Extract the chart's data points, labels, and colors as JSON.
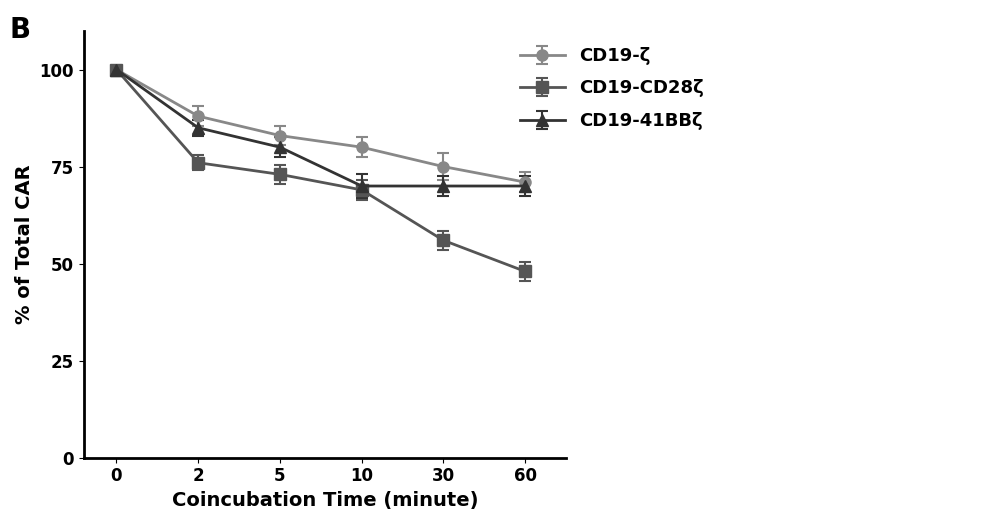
{
  "x_positions": [
    0,
    1,
    2,
    3,
    4,
    5
  ],
  "x_labels": [
    "0",
    "2",
    "5",
    "10",
    "30",
    "60"
  ],
  "series": [
    {
      "label": "CD19-ζ",
      "values": [
        100,
        88,
        83,
        80,
        75,
        71
      ],
      "yerr": [
        0,
        2.5,
        2.5,
        2.5,
        3.5,
        2.5
      ],
      "color": "#888888",
      "marker": "o",
      "linestyle": "-"
    },
    {
      "label": "CD19-CD28ζ",
      "values": [
        100,
        76,
        73,
        69,
        56,
        48
      ],
      "yerr": [
        0,
        2.0,
        2.5,
        2.5,
        2.5,
        2.5
      ],
      "color": "#555555",
      "marker": "s",
      "linestyle": "-"
    },
    {
      "label": "CD19-41BBζ",
      "values": [
        100,
        85,
        80,
        70,
        70,
        70
      ],
      "yerr": [
        0,
        2.0,
        2.5,
        3.0,
        2.5,
        2.5
      ],
      "color": "#333333",
      "marker": "^",
      "linestyle": "-"
    }
  ],
  "xlabel": "Coincubation Time (minute)",
  "ylabel": "% of Total CAR",
  "xlim": [
    -0.4,
    5.5
  ],
  "ylim": [
    0,
    110
  ],
  "yticks": [
    0,
    25,
    50,
    75,
    100
  ],
  "panel_label": "B",
  "line_width": 2.0,
  "marker_size": 8,
  "background_color": "#ffffff",
  "legend_fontsize": 13,
  "axis_label_fontsize": 14,
  "tick_fontsize": 12,
  "panel_label_fontsize": 20
}
